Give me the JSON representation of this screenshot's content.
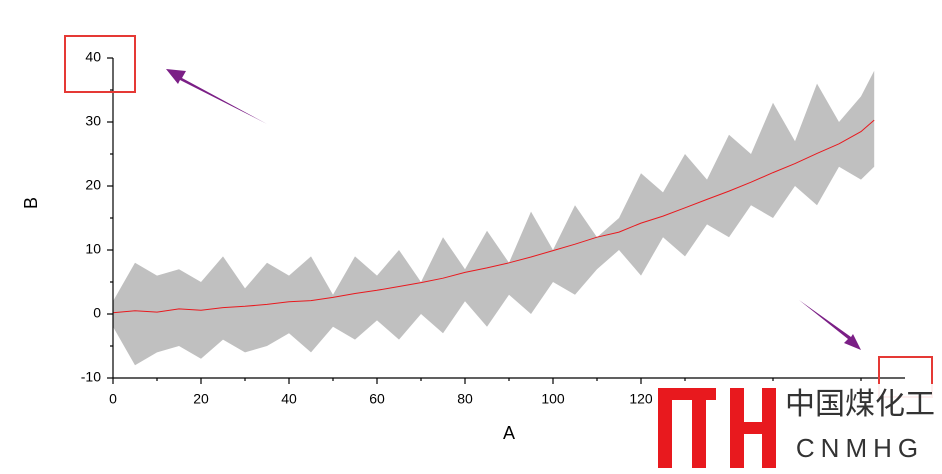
{
  "chart_data": {
    "type": "band-line",
    "x_label": "A",
    "y_label": "B",
    "x": [
      0,
      5,
      10,
      15,
      20,
      25,
      30,
      35,
      40,
      45,
      50,
      55,
      60,
      65,
      70,
      75,
      80,
      85,
      90,
      95,
      100,
      105,
      110,
      115,
      120,
      125,
      130,
      135,
      140,
      145,
      150,
      155,
      160,
      165,
      170,
      173
    ],
    "line": {
      "color": "#e8191e",
      "values": [
        0.2,
        0.5,
        0.3,
        0.8,
        0.6,
        1.0,
        1.2,
        1.5,
        1.9,
        2.1,
        2.6,
        3.2,
        3.7,
        4.3,
        4.9,
        5.6,
        6.5,
        7.2,
        8.0,
        8.9,
        9.9,
        10.9,
        12.0,
        12.8,
        14.2,
        15.3,
        16.6,
        17.9,
        19.2,
        20.6,
        22.1,
        23.5,
        25.1,
        26.6,
        28.5,
        30.3
      ]
    },
    "band": {
      "color": "#c0c0c0",
      "upper": [
        2,
        8,
        6,
        7,
        5,
        9,
        4,
        8,
        6,
        9,
        3,
        9,
        6,
        10,
        5,
        12,
        7,
        13,
        8,
        16,
        10,
        17,
        12,
        15,
        22,
        19,
        25,
        21,
        28,
        25,
        33,
        27,
        36,
        30,
        34,
        38
      ],
      "lower": [
        -2,
        -8,
        -6,
        -5,
        -7,
        -4,
        -6,
        -5,
        -3,
        -6,
        -2,
        -4,
        -1,
        -4,
        0,
        -3,
        2,
        -2,
        3,
        0,
        5,
        3,
        7,
        10,
        6,
        12,
        9,
        14,
        12,
        17,
        15,
        20,
        17,
        23,
        21,
        23
      ]
    },
    "xlim": [
      0,
      180
    ],
    "xticks": [
      0,
      20,
      40,
      60,
      80,
      100,
      120
    ],
    "ylim": [
      -10,
      40
    ],
    "yticks": [
      -10,
      0,
      10,
      20,
      30,
      40
    ]
  },
  "watermark": {
    "title": "中国煤化工",
    "subtitle": "CNMHG"
  }
}
